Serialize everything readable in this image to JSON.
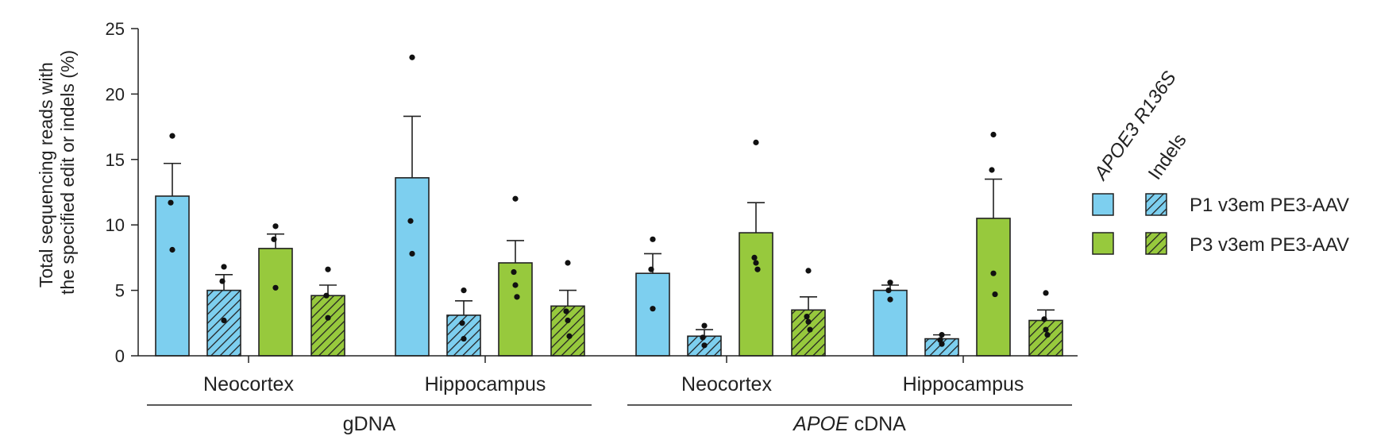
{
  "chart_data": {
    "type": "bar",
    "ylabel_line1": "Total sequencing reads with",
    "ylabel_line2": "the specified edit or indels (%)",
    "ylim": [
      0,
      25
    ],
    "yticks": [
      "0",
      "5",
      "10",
      "15",
      "20",
      "25"
    ],
    "tissue_labels": [
      "Neocortex",
      "Hippocampus",
      "Neocortex",
      "Hippocampus"
    ],
    "source_labels": [
      {
        "italic": "",
        "plain": "gDNA"
      },
      {
        "italic": "APOE",
        "plain": " cDNA"
      }
    ],
    "legend": {
      "column_headers": [
        "APOE3 R136S",
        "Indels"
      ],
      "rows": [
        "P1 v3em PE3-AAV",
        "P3 v3em PE3-AAV"
      ]
    },
    "colors": {
      "p1": "#7dcfef",
      "p3": "#97c93d",
      "edge": "#222222"
    },
    "bars": [
      {
        "group": 0,
        "construct": "P1 v3em PE3-AAV",
        "measure": "APOE3 R136S",
        "value": 12.2,
        "sem": 2.5,
        "points": [
          16.8,
          11.7,
          8.1
        ]
      },
      {
        "group": 0,
        "construct": "P1 v3em PE3-AAV",
        "measure": "Indels",
        "value": 5.0,
        "sem": 1.2,
        "points": [
          6.8,
          5.7,
          2.7
        ]
      },
      {
        "group": 0,
        "construct": "P3 v3em PE3-AAV",
        "measure": "APOE3 R136S",
        "value": 8.2,
        "sem": 1.1,
        "points": [
          9.9,
          8.9,
          5.2
        ]
      },
      {
        "group": 0,
        "construct": "P3 v3em PE3-AAV",
        "measure": "Indels",
        "value": 4.6,
        "sem": 0.8,
        "points": [
          6.6,
          4.6,
          2.9
        ]
      },
      {
        "group": 1,
        "construct": "P1 v3em PE3-AAV",
        "measure": "APOE3 R136S",
        "value": 13.6,
        "sem": 4.7,
        "points": [
          22.8,
          10.3,
          7.8
        ]
      },
      {
        "group": 1,
        "construct": "P1 v3em PE3-AAV",
        "measure": "Indels",
        "value": 3.1,
        "sem": 1.1,
        "points": [
          5.0,
          2.5,
          1.3
        ]
      },
      {
        "group": 1,
        "construct": "P3 v3em PE3-AAV",
        "measure": "APOE3 R136S",
        "value": 7.1,
        "sem": 1.7,
        "points": [
          12.0,
          6.4,
          5.4,
          4.5
        ]
      },
      {
        "group": 1,
        "construct": "P3 v3em PE3-AAV",
        "measure": "Indels",
        "value": 3.8,
        "sem": 1.2,
        "points": [
          7.1,
          3.4,
          2.7,
          1.5
        ]
      },
      {
        "group": 2,
        "construct": "P1 v3em PE3-AAV",
        "measure": "APOE3 R136S",
        "value": 6.3,
        "sem": 1.5,
        "points": [
          8.9,
          6.6,
          3.6
        ]
      },
      {
        "group": 2,
        "construct": "P1 v3em PE3-AAV",
        "measure": "Indels",
        "value": 1.5,
        "sem": 0.5,
        "points": [
          2.3,
          1.4,
          0.8
        ]
      },
      {
        "group": 2,
        "construct": "P3 v3em PE3-AAV",
        "measure": "APOE3 R136S",
        "value": 9.4,
        "sem": 2.3,
        "points": [
          16.3,
          7.5,
          7.1,
          6.6
        ]
      },
      {
        "group": 2,
        "construct": "P3 v3em PE3-AAV",
        "measure": "Indels",
        "value": 3.5,
        "sem": 1.0,
        "points": [
          6.5,
          3.0,
          2.6,
          2.0
        ]
      },
      {
        "group": 3,
        "construct": "P1 v3em PE3-AAV",
        "measure": "APOE3 R136S",
        "value": 5.0,
        "sem": 0.4,
        "points": [
          5.6,
          5.0,
          4.3
        ]
      },
      {
        "group": 3,
        "construct": "P1 v3em PE3-AAV",
        "measure": "Indels",
        "value": 1.3,
        "sem": 0.3,
        "points": [
          1.6,
          1.2,
          0.9
        ]
      },
      {
        "group": 3,
        "construct": "P3 v3em PE3-AAV",
        "measure": "APOE3 R136S",
        "value": 10.5,
        "sem": 3.0,
        "points": [
          16.9,
          14.2,
          6.3,
          4.7
        ]
      },
      {
        "group": 3,
        "construct": "P3 v3em PE3-AAV",
        "measure": "Indels",
        "value": 2.7,
        "sem": 0.8,
        "points": [
          4.8,
          2.8,
          2.0,
          1.6
        ]
      }
    ]
  }
}
